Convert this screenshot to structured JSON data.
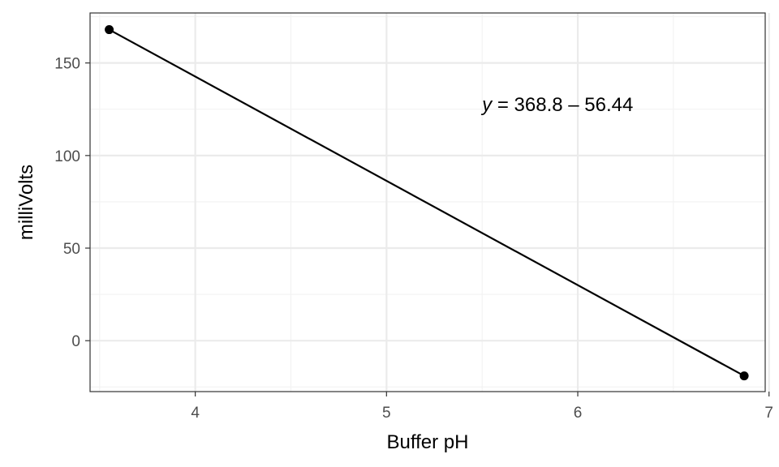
{
  "chart_data": {
    "type": "line",
    "title": "",
    "xlabel": "Buffer pH",
    "ylabel": "milliVolts",
    "xlim": [
      3.45,
      6.98
    ],
    "ylim": [
      -27.5,
      177
    ],
    "xticks": [
      4,
      5,
      6,
      7
    ],
    "yticks": [
      0,
      50,
      100,
      150
    ],
    "xtick_labels": [
      "4",
      "5",
      "6",
      "7"
    ],
    "ytick_labels": [
      "0",
      "50",
      "100",
      "150"
    ],
    "grid": true,
    "legend": "none",
    "series": [
      {
        "x": [
          3.55,
          6.87
        ],
        "y": [
          168,
          -19
        ]
      }
    ],
    "annotation": {
      "var": "y",
      "rest": " = 368.8 – 56.44",
      "x": 5.5,
      "y": 124
    },
    "colors": {
      "line": "#000000",
      "point": "#000000",
      "grid_major": "#ebebeb",
      "grid_minor": "#f2f2f2",
      "panel_border": "#333333"
    }
  }
}
